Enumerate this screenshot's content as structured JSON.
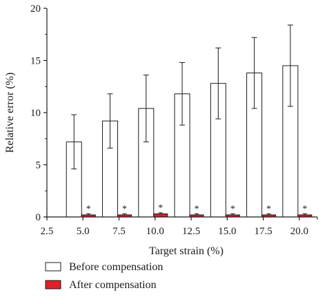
{
  "chart_data": {
    "type": "bar",
    "title": "",
    "xlabel": "Target strain (%)",
    "ylabel": "Relative error (%)",
    "x_ticks": [
      "2.5",
      "5.0",
      "7.5",
      "10.0",
      "12.5",
      "15.0",
      "17.5",
      "20.0"
    ],
    "categories": [
      "5.0",
      "7.5",
      "10.0",
      "12.5",
      "15.0",
      "17.5",
      "20.0"
    ],
    "xlim": [
      2.5,
      21.25
    ],
    "ylim": [
      0,
      20
    ],
    "y_ticks": [
      0,
      5,
      10,
      15,
      20
    ],
    "grid": false,
    "legend_position": "bottom-left",
    "series": [
      {
        "name": "Before compensation",
        "color": "#ffffff",
        "values": [
          7.2,
          9.2,
          10.4,
          11.8,
          12.8,
          13.8,
          14.5
        ],
        "errors": [
          2.6,
          2.6,
          3.2,
          3.0,
          3.4,
          3.4,
          3.9
        ]
      },
      {
        "name": "After compensation",
        "color": "#e0202a",
        "values": [
          0.2,
          0.2,
          0.3,
          0.2,
          0.2,
          0.2,
          0.2
        ],
        "errors": [
          0.1,
          0.1,
          0.1,
          0.1,
          0.1,
          0.1,
          0.1
        ]
      }
    ],
    "annotations": {
      "significance_marker": "*",
      "applies_to": "After compensation"
    }
  }
}
